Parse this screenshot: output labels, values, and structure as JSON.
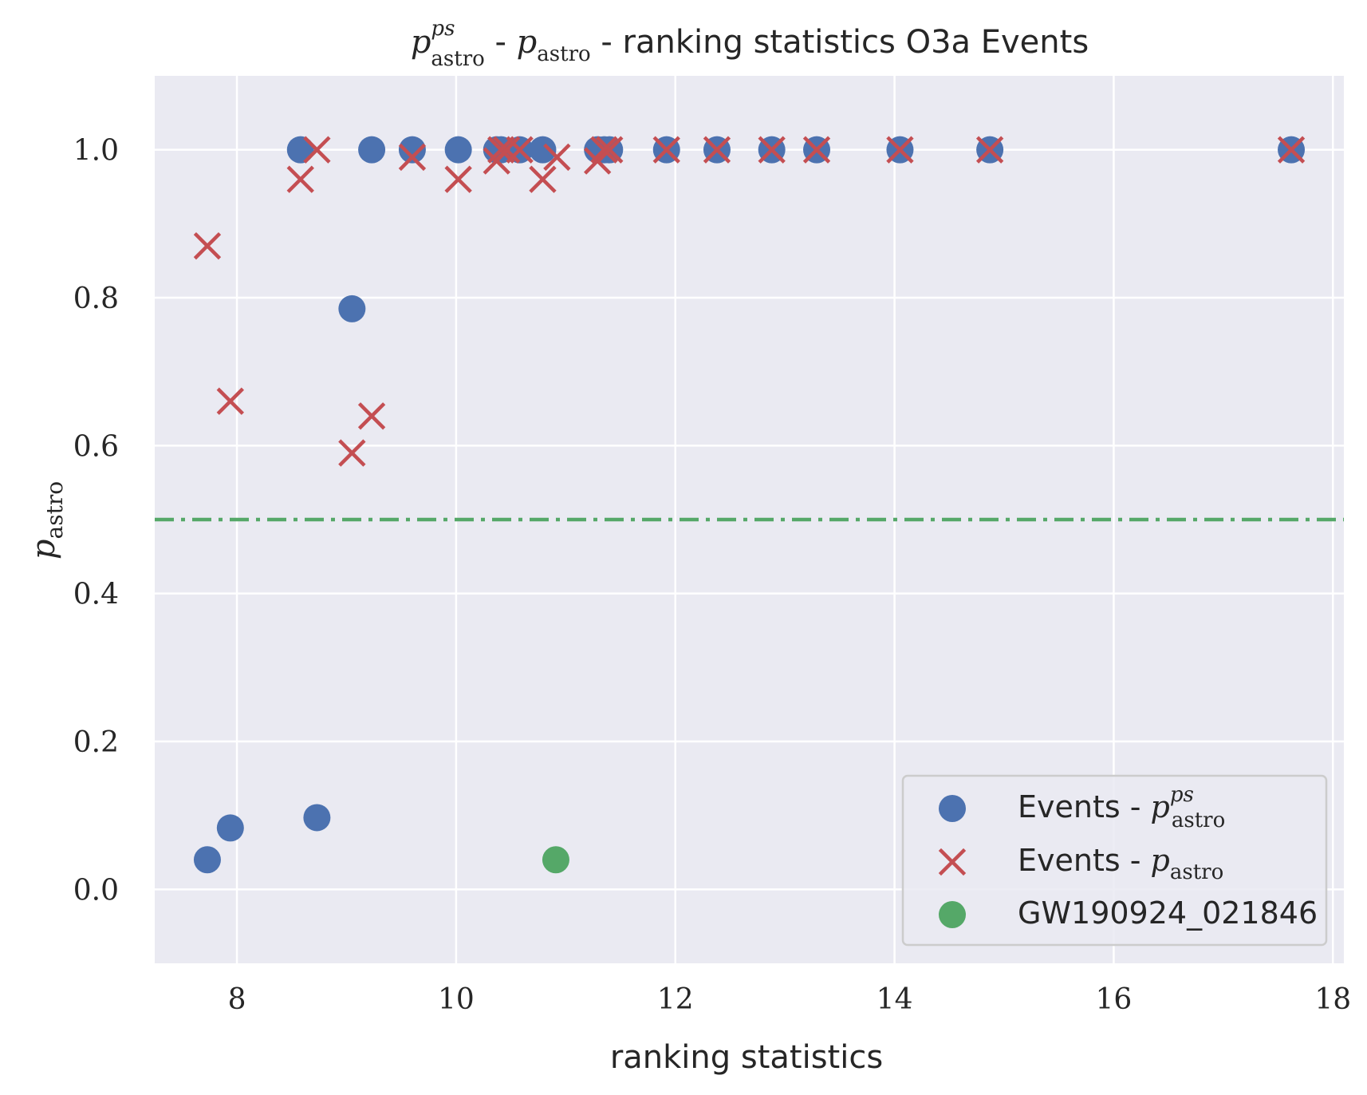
{
  "chart_data": {
    "type": "scatter",
    "title": {
      "p1": "p",
      "p1_sup": "ps",
      "p1_sub": "astro",
      "sep1": " - ",
      "p2": "p",
      "p2_sub": "astro",
      "rest": " - ranking statistics O3a Events"
    },
    "xlabel": "ranking statistics",
    "ylabel": {
      "main": "p",
      "sub": "astro"
    },
    "xlim": [
      7.25,
      18.1
    ],
    "ylim": [
      -0.1,
      1.1
    ],
    "xticks": [
      8,
      10,
      12,
      14,
      16,
      18
    ],
    "xtick_labels": [
      "8",
      "10",
      "12",
      "14",
      "16",
      "18"
    ],
    "yticks": [
      0.0,
      0.2,
      0.4,
      0.6,
      0.8,
      1.0
    ],
    "ytick_labels": [
      "0.0",
      "0.2",
      "0.4",
      "0.6",
      "0.8",
      "1.0"
    ],
    "grid": true,
    "legend_position": "lower-right",
    "hline": {
      "y": 0.5,
      "style": "dash-dot",
      "color": "#55a868"
    },
    "series": [
      {
        "name": "Events - p^{ps}_{astro}",
        "legend": {
          "prefix": "Events - ",
          "p": "p",
          "sup": "ps",
          "sub": "astro"
        },
        "marker": "circle",
        "color": "#4c72b0",
        "x": [
          7.73,
          7.94,
          8.58,
          8.73,
          9.05,
          9.23,
          9.6,
          10.02,
          10.37,
          10.41,
          10.58,
          10.79,
          11.29,
          11.35,
          11.4,
          11.92,
          12.38,
          12.88,
          13.29,
          14.05,
          14.87,
          17.62
        ],
        "y": [
          0.04,
          0.083,
          1.0,
          0.097,
          0.785,
          1.0,
          1.0,
          1.0,
          1.0,
          1.0,
          1.0,
          1.0,
          1.0,
          1.0,
          1.0,
          1.0,
          1.0,
          1.0,
          1.0,
          1.0,
          1.0,
          1.0
        ]
      },
      {
        "name": "Events - p_{astro}",
        "legend": {
          "prefix": "Events - ",
          "p": "p",
          "sub": "astro"
        },
        "marker": "x",
        "color": "#c44e52",
        "x": [
          7.73,
          7.94,
          8.58,
          8.73,
          9.05,
          9.23,
          9.6,
          10.02,
          10.37,
          10.41,
          10.46,
          10.58,
          10.79,
          10.92,
          11.29,
          11.35,
          11.4,
          11.92,
          12.38,
          12.88,
          13.29,
          14.05,
          14.87,
          17.62
        ],
        "y": [
          0.87,
          0.66,
          0.96,
          1.0,
          0.59,
          0.64,
          0.99,
          0.96,
          0.985,
          1.0,
          1.0,
          1.0,
          0.96,
          0.99,
          0.985,
          1.0,
          1.0,
          1.0,
          1.0,
          1.0,
          1.0,
          1.0,
          1.0,
          1.0
        ]
      },
      {
        "name": "GW190924_021846",
        "legend": {
          "label": "GW190924_021846"
        },
        "marker": "circle",
        "color": "#55a868",
        "x": [
          10.91
        ],
        "y": [
          0.04
        ]
      }
    ]
  },
  "colors": {
    "axes_background": "#eaeaf2",
    "grid": "#ffffff",
    "text": "#262626",
    "legend_background": "#eaeaf2",
    "legend_border": "#cccccc"
  }
}
